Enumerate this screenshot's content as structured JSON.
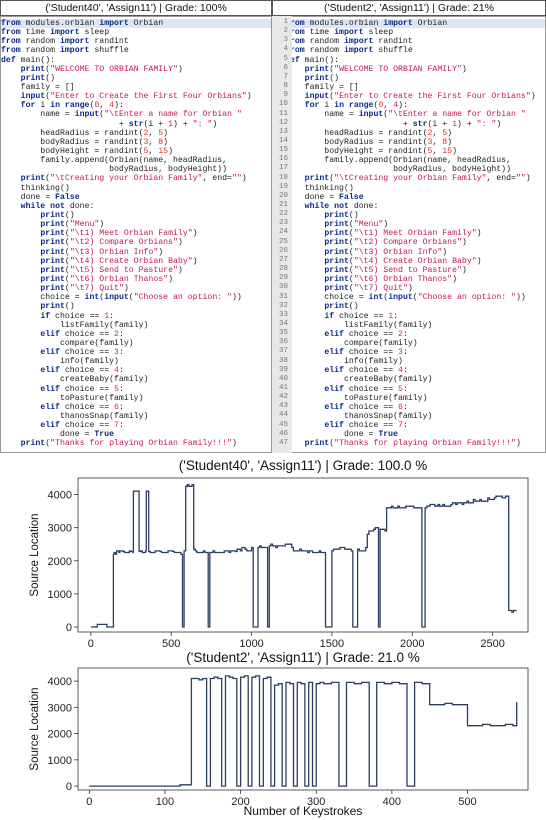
{
  "headers": {
    "left": "('Student40', 'Assign11') | Grade: 100%",
    "right": "('Student2', 'Assign11') | Grade: 21%"
  },
  "code_lines": [
    "from modules.orbian import Orbian",
    "from time import sleep",
    "from random import randint",
    "from random import shuffle",
    "def main():",
    "    print(\"WELCOME TO ORBIAN FAMILY\")",
    "    print()",
    "    family = []",
    "    input(\"Enter to Create the First Four Orbians\")",
    "    for i in range(0, 4):",
    "        name = input(\"\\tEnter a name for Orbian \"",
    "                        + str(i + 1) + \": \")",
    "        headRadius = randint(2, 5)",
    "        bodyRadius = randint(3, 8)",
    "        bodyHeight = randint(5, 15)",
    "        family.append(Orbian(name, headRadius,",
    "                      bodyRadius, bodyHeight))",
    "    print(\"\\tCreating your Orbian Family\", end=\"\")",
    "    thinking()",
    "    done = False",
    "    while not done:",
    "        print()",
    "        print(\"Menu\")",
    "        print(\"\\t1) Meet Orbian Family\")",
    "        print(\"\\t2) Compare Orbians\")",
    "        print(\"\\t3) Orbian Info\")",
    "        print(\"\\t4) Create Orbian Baby\")",
    "        print(\"\\t5) Send to Pasture\")",
    "        print(\"\\t6) Orbian Thanos\")",
    "        print(\"\\t7) Quit\")",
    "        choice = int(input(\"Choose an option: \"))",
    "        print()",
    "        if choice == 1:",
    "            listFamily(family)",
    "        elif choice == 2:",
    "            compare(family)",
    "        elif choice == 3:",
    "            info(family)",
    "        elif choice == 4:",
    "            createBaby(family)",
    "        elif choice == 5:",
    "            toPasture(family)",
    "        elif choice == 6:",
    "            thanosSnap(family)",
    "        elif choice == 7:",
    "            done = True",
    "    print(\"Thanks for playing Orbian Family!!!\")"
  ],
  "chart_data": [
    {
      "type": "line",
      "title": "('Student40', 'Assign11') | Grade: 100.0 %",
      "xlabel": "",
      "ylabel": "Source Location",
      "xlim": [
        -80,
        2720
      ],
      "ylim": [
        -150,
        4500
      ],
      "xticks": [
        0,
        500,
        1000,
        1500,
        2000,
        2500
      ],
      "yticks": [
        0,
        1000,
        2000,
        3000,
        4000
      ],
      "color": "#2c3e5e",
      "x": [
        0,
        40,
        100,
        130,
        140,
        145,
        155,
        160,
        175,
        180,
        200,
        210,
        240,
        250,
        262,
        265,
        300,
        310,
        320,
        330,
        340,
        345,
        360,
        370,
        390,
        400,
        430,
        440,
        470,
        480,
        510,
        520,
        560,
        570,
        580,
        590,
        600,
        610,
        630,
        640,
        650,
        660,
        700,
        710,
        730,
        740,
        760,
        770,
        820,
        830,
        860,
        870,
        900,
        910,
        930,
        940,
        960,
        970,
        1000,
        1010,
        1040,
        1050,
        1060,
        1070,
        1100,
        1110,
        1120,
        1130,
        1150,
        1160,
        1200,
        1210,
        1250,
        1260,
        1300,
        1310,
        1350,
        1360,
        1380,
        1390,
        1420,
        1430,
        1450,
        1460,
        1500,
        1510,
        1540,
        1550,
        1580,
        1590,
        1620,
        1630,
        1660,
        1670,
        1700,
        1710,
        1720,
        1730,
        1760,
        1770,
        1790,
        1800,
        1830,
        1840,
        1870,
        1880,
        1910,
        1920,
        1950,
        1960,
        2000,
        2010,
        2050,
        2060,
        2080,
        2090,
        2100,
        2110,
        2140,
        2150,
        2160,
        2170,
        2190,
        2200,
        2240,
        2250,
        2270,
        2280,
        2310,
        2320,
        2340,
        2350,
        2380,
        2390,
        2420,
        2430,
        2470,
        2480,
        2510,
        2520,
        2550,
        2560,
        2580,
        2590,
        2600,
        2620,
        2630,
        2650
      ],
      "y": [
        0,
        80,
        0,
        0,
        2200,
        2250,
        2200,
        2300,
        2250,
        2300,
        2280,
        2250,
        2300,
        2280,
        2250,
        4100,
        2280,
        2300,
        2250,
        2250,
        2300,
        4100,
        2280,
        2250,
        2250,
        2300,
        2280,
        2250,
        2250,
        2300,
        2280,
        2250,
        2200,
        0,
        2300,
        4250,
        4300,
        4250,
        4300,
        2350,
        2300,
        2250,
        2300,
        2250,
        0,
        2250,
        2300,
        2250,
        2250,
        2300,
        2250,
        2300,
        2280,
        2350,
        2300,
        2400,
        2350,
        2300,
        2400,
        0,
        2400,
        2450,
        2400,
        2400,
        0,
        2450,
        2500,
        2450,
        2400,
        2450,
        2450,
        2500,
        2400,
        2300,
        2350,
        2300,
        2250,
        2300,
        2250,
        2250,
        2300,
        2250,
        2250,
        0,
        2300,
        2350,
        2350,
        2400,
        2350,
        2350,
        2300,
        0,
        2350,
        2300,
        2300,
        2400,
        2800,
        2900,
        2950,
        3000,
        0,
        2950,
        2900,
        3600,
        3650,
        3600,
        3650,
        3600,
        3600,
        3650,
        3650,
        3600,
        3600,
        0,
        3600,
        3650,
        3650,
        3700,
        3650,
        3650,
        3700,
        3650,
        3700,
        3650,
        3700,
        3750,
        3700,
        3750,
        3700,
        3750,
        3800,
        3750,
        3850,
        3800,
        3850,
        3800,
        3900,
        3850,
        3900,
        3950,
        3950,
        3900,
        3950,
        3950,
        500,
        450,
        500,
        500
      ]
    },
    {
      "type": "line",
      "title": "('Student2', 'Assign11') | Grade: 21.0 %",
      "xlabel": "Number of Keystrokes",
      "ylabel": "Source Location",
      "xlim": [
        -15,
        580
      ],
      "ylim": [
        -150,
        4500
      ],
      "xticks": [
        0,
        100,
        200,
        300,
        400,
        500
      ],
      "yticks": [
        0,
        1000,
        2000,
        3000,
        4000
      ],
      "color": "#2c3e5e",
      "x": [
        0,
        80,
        120,
        132,
        135,
        140,
        145,
        150,
        155,
        160,
        165,
        170,
        175,
        180,
        185,
        190,
        195,
        200,
        205,
        210,
        215,
        220,
        225,
        230,
        235,
        240,
        245,
        250,
        255,
        260,
        265,
        270,
        275,
        280,
        285,
        290,
        295,
        300,
        305,
        310,
        320,
        330,
        340,
        350,
        360,
        370,
        380,
        390,
        400,
        410,
        420,
        430,
        440,
        450,
        460,
        470,
        480,
        490,
        500,
        510,
        520,
        530,
        540,
        550,
        560,
        565
      ],
      "y": [
        0,
        0,
        50,
        50,
        4100,
        4100,
        4050,
        4100,
        0,
        4100,
        4150,
        4100,
        0,
        4200,
        4150,
        4100,
        0,
        4150,
        4200,
        0,
        4150,
        4200,
        0,
        4100,
        4150,
        0,
        3850,
        3900,
        0,
        3950,
        3900,
        0,
        3950,
        3900,
        0,
        3950,
        0,
        3900,
        3950,
        3900,
        3950,
        0,
        3950,
        3900,
        3950,
        0,
        3950,
        3900,
        3950,
        3900,
        0,
        3950,
        3900,
        3100,
        3100,
        3150,
        3100,
        3100,
        2300,
        2300,
        2350,
        2300,
        2300,
        2350,
        2300,
        3200
      ]
    }
  ]
}
